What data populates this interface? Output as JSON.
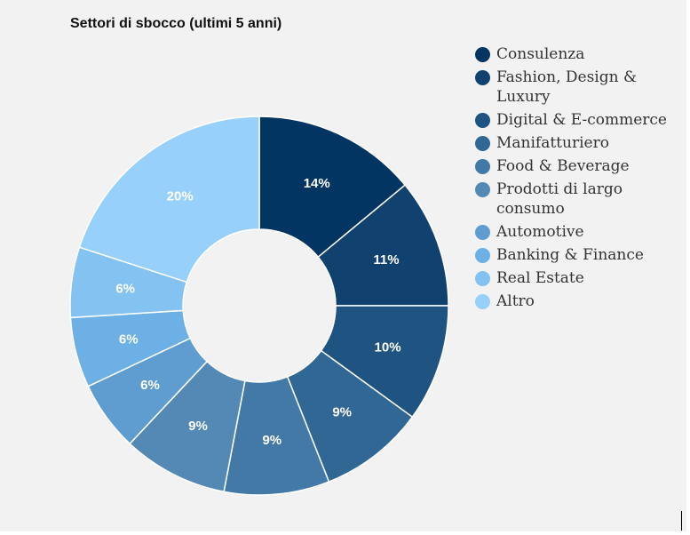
{
  "chart_data": {
    "type": "pie",
    "variant": "donut",
    "title": "Settori di sbocco (ultimi 5 anni)",
    "legend_position": "right",
    "slices": [
      {
        "label": "Consulenza",
        "value": 14,
        "display": "14%",
        "color": "#033563"
      },
      {
        "label": "Fashion, Design & Luxury",
        "value": 11,
        "display": "11%",
        "color": "#11426f"
      },
      {
        "label": "Digital & E-commerce",
        "value": 10,
        "display": "10%",
        "color": "#1e5382"
      },
      {
        "label": "Manifatturiero",
        "value": 9,
        "display": "9%",
        "color": "#316795"
      },
      {
        "label": "Food & Beverage",
        "value": 9,
        "display": "9%",
        "color": "#4279a6"
      },
      {
        "label": "Prodotti di largo consumo",
        "value": 9,
        "display": "9%",
        "color": "#5489b5"
      },
      {
        "label": "Automotive",
        "value": 6,
        "display": "6%",
        "color": "#5f9dd0"
      },
      {
        "label": "Banking & Finance",
        "value": 6,
        "display": "6%",
        "color": "#6db0e5"
      },
      {
        "label": "Real Estate",
        "value": 6,
        "display": "6%",
        "color": "#84c2f2"
      },
      {
        "label": "Altro",
        "value": 20,
        "display": "20%",
        "color": "#97d0fb"
      }
    ]
  },
  "legend_labels": {
    "consulenza": "Consulenza",
    "fashion_line1": "Fashion, Design &",
    "fashion_line2": "Luxury",
    "digital": "Digital & E-commerce",
    "manifatturiero": "Manifatturiero",
    "food": "Food & Beverage",
    "prodotti_line1": "Prodotti di largo",
    "prodotti_line2": "consumo",
    "automotive": "Automotive",
    "banking": "Banking & Finance",
    "real_estate": "Real Estate",
    "altro": "Altro"
  }
}
